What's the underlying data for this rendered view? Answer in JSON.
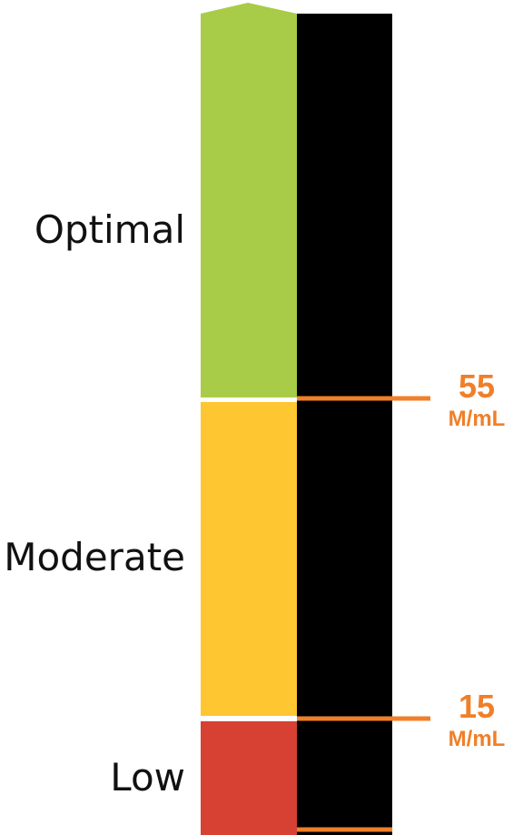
{
  "zones": [
    {
      "key": "optimal",
      "label": "Optimal",
      "color": "#a8cc48"
    },
    {
      "key": "moderate",
      "label": "Moderate",
      "color": "#fec731"
    },
    {
      "key": "low",
      "label": "Low",
      "color": "#d64133"
    }
  ],
  "thresholds": [
    {
      "key": "upper",
      "value": "55",
      "unit": "M/mL"
    },
    {
      "key": "lower",
      "value": "15",
      "unit": "M/mL"
    }
  ],
  "colors": {
    "track": "#000000",
    "marker": "#f07f29",
    "divider": "#ffffff"
  }
}
